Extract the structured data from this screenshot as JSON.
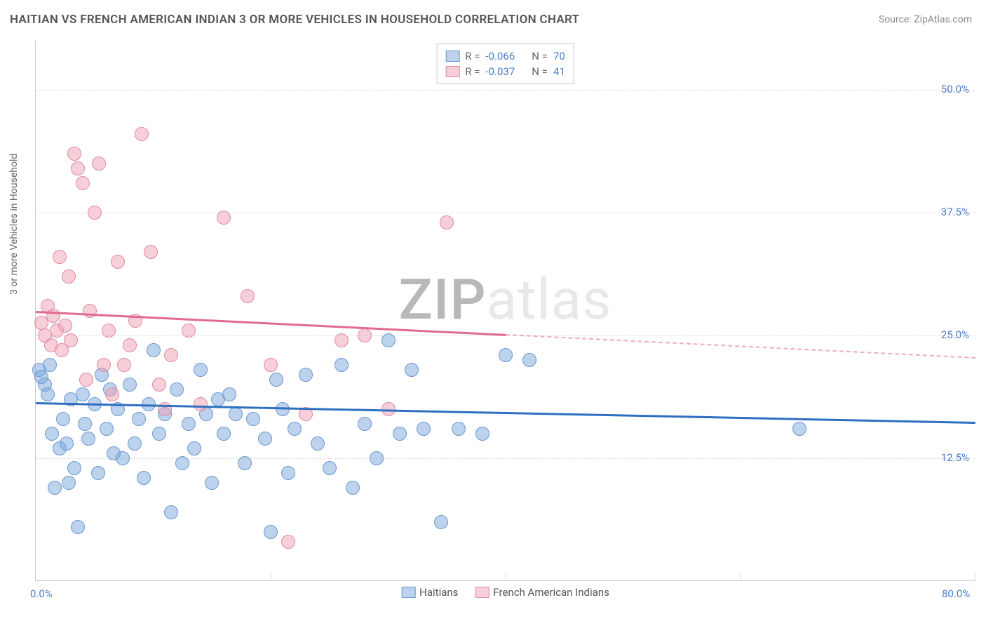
{
  "title": "HAITIAN VS FRENCH AMERICAN INDIAN 3 OR MORE VEHICLES IN HOUSEHOLD CORRELATION CHART",
  "source": "Source: ZipAtlas.com",
  "ylabel": "3 or more Vehicles in Household",
  "watermark": {
    "part1": "ZIP",
    "part2": "atlas"
  },
  "xlim": [
    0,
    80
  ],
  "ylim": [
    0,
    55
  ],
  "y_ticks": [
    {
      "value": 12.5,
      "label": "12.5%"
    },
    {
      "value": 25.0,
      "label": "25.0%"
    },
    {
      "value": 37.5,
      "label": "37.5%"
    },
    {
      "value": 50.0,
      "label": "50.0%"
    }
  ],
  "x_ticks": [
    {
      "value": 0,
      "label": "0.0%"
    },
    {
      "value": 80,
      "label": "80.0%"
    }
  ],
  "x_gridlines": [
    0,
    20,
    40,
    60,
    80
  ],
  "background_color": "#ffffff",
  "grid_color": "#dddddd",
  "axis_color": "#cccccc",
  "tick_label_color": "#4a7fc9",
  "series": [
    {
      "name": "Haitians",
      "fill_color": "rgba(122,165,220,0.50)",
      "stroke_color": "#6b99d0",
      "line_color": "#2f6fc0",
      "marker_radius": 10,
      "R": "-0.066",
      "N": "70",
      "trend": {
        "x1": 0,
        "y1": 18.2,
        "x2": 80,
        "y2": 16.2,
        "solid_until_x": 80
      },
      "points": [
        [
          0.3,
          21.5
        ],
        [
          0.5,
          20.8
        ],
        [
          0.8,
          20.0
        ],
        [
          1.0,
          19.0
        ],
        [
          1.2,
          22.0
        ],
        [
          1.4,
          15.0
        ],
        [
          1.6,
          9.5
        ],
        [
          2.0,
          13.5
        ],
        [
          2.3,
          16.5
        ],
        [
          2.6,
          14.0
        ],
        [
          2.8,
          10.0
        ],
        [
          3.0,
          18.5
        ],
        [
          3.3,
          11.5
        ],
        [
          3.6,
          5.5
        ],
        [
          4.0,
          19.0
        ],
        [
          4.2,
          16.0
        ],
        [
          4.5,
          14.5
        ],
        [
          5.0,
          18.0
        ],
        [
          5.3,
          11.0
        ],
        [
          5.6,
          21.0
        ],
        [
          6.0,
          15.5
        ],
        [
          6.3,
          19.5
        ],
        [
          6.6,
          13.0
        ],
        [
          7.0,
          17.5
        ],
        [
          7.4,
          12.5
        ],
        [
          8.0,
          20.0
        ],
        [
          8.4,
          14.0
        ],
        [
          8.8,
          16.5
        ],
        [
          9.2,
          10.5
        ],
        [
          9.6,
          18.0
        ],
        [
          10.0,
          23.5
        ],
        [
          10.5,
          15.0
        ],
        [
          11.0,
          17.0
        ],
        [
          11.5,
          7.0
        ],
        [
          12.0,
          19.5
        ],
        [
          12.5,
          12.0
        ],
        [
          13.0,
          16.0
        ],
        [
          13.5,
          13.5
        ],
        [
          14.0,
          21.5
        ],
        [
          14.5,
          17.0
        ],
        [
          15.0,
          10.0
        ],
        [
          15.5,
          18.5
        ],
        [
          16.0,
          15.0
        ],
        [
          16.5,
          19.0
        ],
        [
          17.0,
          17.0
        ],
        [
          17.8,
          12.0
        ],
        [
          18.5,
          16.5
        ],
        [
          19.5,
          14.5
        ],
        [
          20.0,
          5.0
        ],
        [
          20.5,
          20.5
        ],
        [
          21.0,
          17.5
        ],
        [
          21.5,
          11.0
        ],
        [
          22.0,
          15.5
        ],
        [
          23.0,
          21.0
        ],
        [
          24.0,
          14.0
        ],
        [
          25.0,
          11.5
        ],
        [
          26.0,
          22.0
        ],
        [
          27.0,
          9.5
        ],
        [
          28.0,
          16.0
        ],
        [
          29.0,
          12.5
        ],
        [
          30.0,
          24.5
        ],
        [
          31.0,
          15.0
        ],
        [
          32.0,
          21.5
        ],
        [
          33.0,
          15.5
        ],
        [
          34.5,
          6.0
        ],
        [
          36.0,
          15.5
        ],
        [
          38.0,
          15.0
        ],
        [
          40.0,
          23.0
        ],
        [
          42.0,
          22.5
        ],
        [
          65.0,
          15.5
        ]
      ]
    },
    {
      "name": "French American Indians",
      "fill_color": "rgba(240,160,180,0.50)",
      "stroke_color": "#e08aa5",
      "line_color": "#e06a90",
      "marker_radius": 10,
      "R": "-0.037",
      "N": "41",
      "trend": {
        "x1": 0,
        "y1": 27.5,
        "x2": 80,
        "y2": 22.8,
        "solid_until_x": 40
      },
      "points": [
        [
          0.5,
          26.3
        ],
        [
          0.8,
          25.0
        ],
        [
          1.0,
          28.0
        ],
        [
          1.3,
          24.0
        ],
        [
          1.5,
          27.0
        ],
        [
          1.8,
          25.5
        ],
        [
          2.0,
          33.0
        ],
        [
          2.2,
          23.5
        ],
        [
          2.5,
          26.0
        ],
        [
          2.8,
          31.0
        ],
        [
          3.0,
          24.5
        ],
        [
          3.3,
          43.5
        ],
        [
          3.6,
          42.0
        ],
        [
          4.0,
          40.5
        ],
        [
          4.3,
          20.5
        ],
        [
          4.6,
          27.5
        ],
        [
          5.0,
          37.5
        ],
        [
          5.4,
          42.5
        ],
        [
          5.8,
          22.0
        ],
        [
          6.2,
          25.5
        ],
        [
          6.5,
          19.0
        ],
        [
          7.0,
          32.5
        ],
        [
          7.5,
          22.0
        ],
        [
          8.0,
          24.0
        ],
        [
          8.5,
          26.5
        ],
        [
          9.0,
          45.5
        ],
        [
          9.8,
          33.5
        ],
        [
          10.5,
          20.0
        ],
        [
          11.0,
          17.5
        ],
        [
          11.5,
          23.0
        ],
        [
          13.0,
          25.5
        ],
        [
          14.0,
          18.0
        ],
        [
          16.0,
          37.0
        ],
        [
          18.0,
          29.0
        ],
        [
          20.0,
          22.0
        ],
        [
          21.5,
          4.0
        ],
        [
          23.0,
          17.0
        ],
        [
          26.0,
          24.5
        ],
        [
          28.0,
          25.0
        ],
        [
          30.0,
          17.5
        ],
        [
          35.0,
          36.5
        ]
      ]
    }
  ],
  "legend_bottom": [
    {
      "label": "Haitians",
      "fill": "rgba(122,165,220,0.50)",
      "stroke": "#6b99d0"
    },
    {
      "label": "French American Indians",
      "fill": "rgba(240,160,180,0.50)",
      "stroke": "#e08aa5"
    }
  ],
  "legend_top_labels": {
    "R": "R =",
    "N": "N ="
  }
}
